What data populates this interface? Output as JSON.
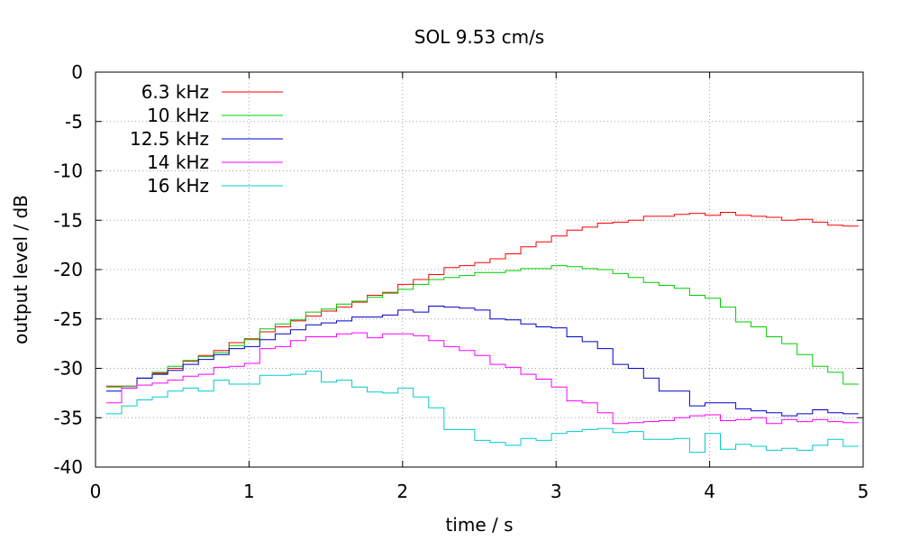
{
  "chart_data": {
    "type": "line",
    "title": "SOL 9.53 cm/s",
    "xlabel": "time / s",
    "ylabel": "output level / dB",
    "xlim": [
      0,
      5
    ],
    "ylim": [
      -40,
      0
    ],
    "xticks": [
      "0",
      "1",
      "2",
      "3",
      "4",
      "5"
    ],
    "yticks": [
      "0",
      "-5",
      "-10",
      "-15",
      "-20",
      "-25",
      "-30",
      "-35",
      "-40"
    ],
    "grid": true,
    "legend_position": "top-left",
    "step": true,
    "x": [
      0.07,
      0.17,
      0.27,
      0.37,
      0.47,
      0.57,
      0.67,
      0.77,
      0.87,
      0.97,
      1.07,
      1.17,
      1.27,
      1.37,
      1.47,
      1.57,
      1.67,
      1.77,
      1.87,
      1.97,
      2.07,
      2.17,
      2.27,
      2.37,
      2.47,
      2.57,
      2.67,
      2.77,
      2.87,
      2.97,
      3.07,
      3.17,
      3.27,
      3.37,
      3.47,
      3.57,
      3.67,
      3.77,
      3.87,
      3.97,
      4.07,
      4.17,
      4.27,
      4.37,
      4.47,
      4.57,
      4.67,
      4.77,
      4.87
    ],
    "series": [
      {
        "name": "6.3 kHz",
        "color": "#ff0000",
        "values": [
          -31.8,
          -31.8,
          -31.0,
          -30.5,
          -30.0,
          -29.3,
          -28.7,
          -28.2,
          -27.4,
          -27.0,
          -26.3,
          -25.8,
          -25.2,
          -24.7,
          -24.2,
          -23.8,
          -23.3,
          -22.6,
          -22.3,
          -21.5,
          -21.0,
          -20.5,
          -19.8,
          -19.6,
          -19.3,
          -18.9,
          -18.4,
          -17.7,
          -17.2,
          -16.6,
          -16.0,
          -15.7,
          -15.3,
          -15.2,
          -15.0,
          -14.6,
          -14.6,
          -14.4,
          -14.3,
          -14.5,
          -14.2,
          -14.5,
          -14.6,
          -14.7,
          -15.0,
          -14.9,
          -15.2,
          -15.5,
          -15.6
        ]
      },
      {
        "name": "10 kHz",
        "color": "#00cc00",
        "values": [
          -31.9,
          -31.8,
          -31.0,
          -30.4,
          -29.8,
          -29.2,
          -28.8,
          -28.4,
          -27.7,
          -27.1,
          -26.0,
          -25.5,
          -25.1,
          -24.3,
          -24.0,
          -23.5,
          -23.2,
          -22.8,
          -22.4,
          -22.0,
          -21.5,
          -21.0,
          -20.8,
          -20.6,
          -20.3,
          -20.3,
          -20.1,
          -19.9,
          -19.9,
          -19.6,
          -19.7,
          -19.9,
          -20.0,
          -20.4,
          -20.8,
          -21.3,
          -21.6,
          -21.9,
          -22.6,
          -22.9,
          -23.8,
          -25.3,
          -25.8,
          -26.8,
          -27.5,
          -28.6,
          -29.8,
          -30.4,
          -31.6
        ]
      },
      {
        "name": "12.5 kHz",
        "color": "#0000cc",
        "values": [
          -32.3,
          -32.0,
          -31.0,
          -30.6,
          -30.2,
          -29.6,
          -29.1,
          -28.6,
          -28.0,
          -27.8,
          -27.1,
          -26.5,
          -26.1,
          -25.6,
          -25.4,
          -25.2,
          -24.8,
          -24.8,
          -24.6,
          -24.1,
          -24.3,
          -23.7,
          -23.8,
          -23.9,
          -24.1,
          -25.0,
          -25.1,
          -25.5,
          -25.8,
          -25.9,
          -26.8,
          -27.3,
          -28.0,
          -29.6,
          -30.0,
          -31.0,
          -32.3,
          -32.3,
          -33.8,
          -33.5,
          -33.5,
          -34.1,
          -34.3,
          -34.5,
          -34.8,
          -34.6,
          -34.2,
          -34.5,
          -34.6
        ]
      },
      {
        "name": "14 kHz",
        "color": "#ff00ff",
        "values": [
          -33.5,
          -32.0,
          -31.7,
          -31.5,
          -31.2,
          -30.8,
          -30.6,
          -29.9,
          -29.8,
          -29.5,
          -28.0,
          -27.8,
          -27.2,
          -26.8,
          -26.8,
          -26.5,
          -26.4,
          -26.9,
          -26.5,
          -26.5,
          -26.7,
          -27.2,
          -27.8,
          -28.2,
          -28.7,
          -29.6,
          -29.9,
          -30.6,
          -31.1,
          -31.9,
          -33.3,
          -33.5,
          -34.5,
          -35.6,
          -35.5,
          -35.4,
          -35.3,
          -35.0,
          -34.8,
          -34.7,
          -35.3,
          -35.2,
          -35.0,
          -35.6,
          -35.2,
          -35.4,
          -35.2,
          -35.4,
          -35.5
        ]
      },
      {
        "name": "16 kHz",
        "color": "#00cccc",
        "values": [
          -34.6,
          -33.8,
          -33.2,
          -32.9,
          -32.3,
          -32.0,
          -32.3,
          -31.2,
          -31.6,
          -31.6,
          -30.7,
          -30.7,
          -30.6,
          -30.3,
          -31.4,
          -31.2,
          -31.9,
          -32.4,
          -32.5,
          -32.0,
          -32.9,
          -34.0,
          -36.2,
          -36.2,
          -37.3,
          -37.5,
          -37.8,
          -37.1,
          -37.3,
          -36.6,
          -36.4,
          -36.2,
          -36.1,
          -36.5,
          -36.4,
          -37.2,
          -37.2,
          -37.1,
          -38.5,
          -36.6,
          -38.2,
          -37.7,
          -37.9,
          -38.3,
          -38.1,
          -38.3,
          -37.8,
          -37.2,
          -37.9
        ]
      }
    ]
  }
}
